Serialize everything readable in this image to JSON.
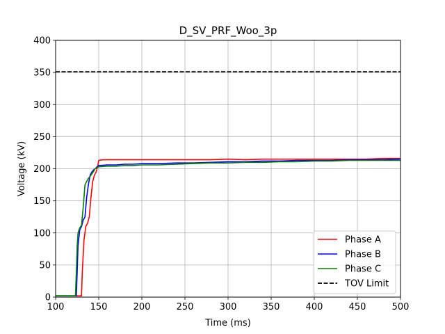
{
  "chart_data": {
    "type": "line",
    "title": "D_SV_PRF_Woo_3p",
    "xlabel": "Time (ms)",
    "ylabel": "Voltage (kV)",
    "xlim": [
      100,
      500
    ],
    "ylim": [
      0,
      400
    ],
    "xticks": [
      100,
      150,
      200,
      250,
      300,
      350,
      400,
      450,
      500
    ],
    "yticks": [
      0,
      50,
      100,
      150,
      200,
      250,
      300,
      350,
      400
    ],
    "grid": true,
    "legend_position": "bottom-right",
    "series": [
      {
        "name": "Phase A",
        "color": "#ff0000",
        "dash": "solid",
        "x": [
          100,
          125,
          130,
          131,
          133,
          135,
          137,
          139,
          141,
          143,
          145,
          147,
          149,
          150,
          155,
          160,
          170,
          180,
          190,
          200,
          220,
          240,
          260,
          280,
          300,
          320,
          340,
          360,
          380,
          400,
          420,
          440,
          460,
          480,
          500
        ],
        "y": [
          2,
          2,
          2,
          40,
          90,
          110,
          115,
          125,
          155,
          180,
          190,
          195,
          205,
          213,
          214,
          214,
          214,
          214,
          214,
          214,
          214,
          214,
          214,
          214,
          215,
          214,
          215,
          215,
          215,
          215,
          215,
          215,
          215,
          216,
          216
        ]
      },
      {
        "name": "Phase B",
        "color": "#0000ff",
        "dash": "solid",
        "x": [
          100,
          120,
          124,
          125,
          126,
          128,
          130,
          132,
          134,
          136,
          138,
          140,
          142,
          144,
          146,
          148,
          150,
          160,
          170,
          180,
          190,
          200,
          220,
          240,
          260,
          280,
          300,
          320,
          340,
          360,
          380,
          400,
          420,
          440,
          460,
          480,
          500
        ],
        "y": [
          2,
          2,
          2,
          40,
          80,
          105,
          110,
          120,
          125,
          155,
          175,
          190,
          195,
          198,
          200,
          203,
          205,
          206,
          206,
          207,
          207,
          208,
          208,
          209,
          209,
          210,
          211,
          211,
          212,
          212,
          213,
          213,
          213,
          214,
          214,
          214,
          215
        ]
      },
      {
        "name": "Phase C",
        "color": "#008000",
        "dash": "solid",
        "x": [
          100,
          123,
          124,
          125,
          126,
          128,
          130,
          132,
          134,
          136,
          138,
          140,
          142,
          144,
          146,
          148,
          150,
          160,
          170,
          180,
          190,
          200,
          220,
          240,
          260,
          280,
          300,
          320,
          340,
          360,
          380,
          400,
          420,
          440,
          460,
          480,
          500
        ],
        "y": [
          2,
          2,
          40,
          80,
          100,
          108,
          112,
          140,
          175,
          180,
          185,
          188,
          192,
          196,
          200,
          202,
          203,
          204,
          204,
          205,
          205,
          206,
          206,
          207,
          208,
          209,
          209,
          210,
          210,
          211,
          211,
          212,
          212,
          213,
          213,
          213,
          213
        ]
      },
      {
        "name": "TOV Limit",
        "color": "#000000",
        "dash": "dashed",
        "x": [
          100,
          500
        ],
        "y": [
          351,
          351
        ]
      }
    ]
  }
}
